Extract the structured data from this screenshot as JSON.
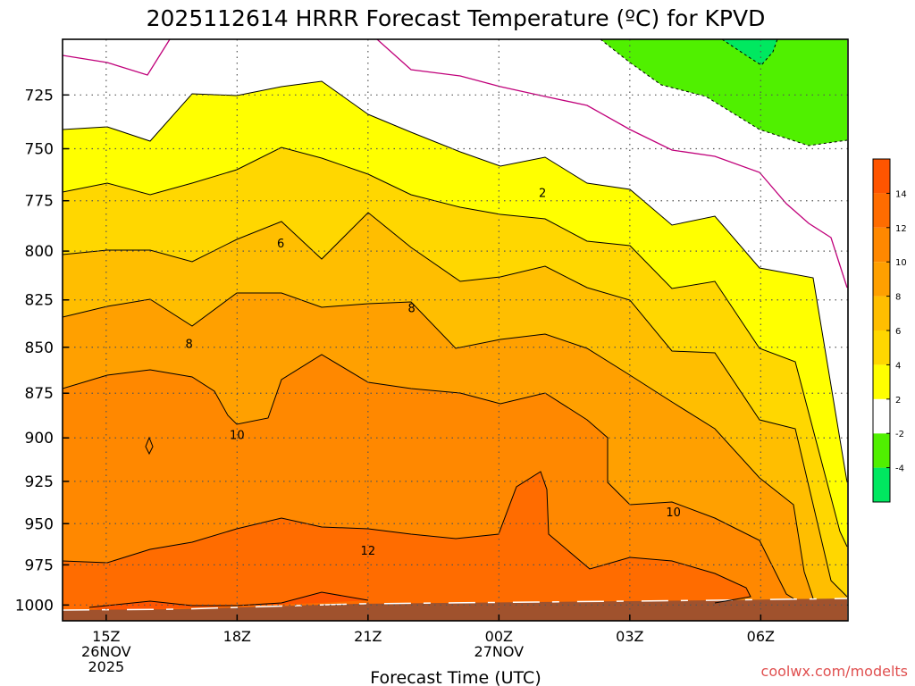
{
  "chart_data": {
    "type": "contour",
    "title": "2025112614 HRRR Forecast Temperature (ºC) for KPVD",
    "xlabel": "Forecast Time (UTC)",
    "ylabel": "",
    "credit": "coolwx.com/modelts",
    "x_ticks": [
      {
        "hour": 15,
        "lines": [
          "15Z",
          "26NOV",
          "2025"
        ]
      },
      {
        "hour": 18,
        "lines": [
          "18Z"
        ]
      },
      {
        "hour": 21,
        "lines": [
          "21Z"
        ]
      },
      {
        "hour": 24,
        "lines": [
          "00Z",
          "27NOV"
        ]
      },
      {
        "hour": 27,
        "lines": [
          "03Z"
        ]
      },
      {
        "hour": 30,
        "lines": [
          "06Z"
        ]
      }
    ],
    "xlim": [
      14,
      32
    ],
    "y_ticks": [
      725,
      750,
      775,
      800,
      825,
      850,
      875,
      900,
      925,
      950,
      975,
      1000
    ],
    "ylim_pressure_hPa": [
      1010,
      700
    ],
    "colorbar": {
      "levels": [
        -6,
        -4,
        -2,
        2,
        4,
        6,
        8,
        10,
        12,
        14,
        16
      ],
      "tick_labels": [
        "-4",
        "-2",
        "2",
        "4",
        "6",
        "8",
        "10",
        "12",
        "14"
      ],
      "colors": [
        "#00e860",
        "#50f000",
        "#ffffff",
        "#ffff00",
        "#ffd700",
        "#ffbe00",
        "#ffa000",
        "#ff8800",
        "#ff6c00",
        "#ff5500"
      ]
    },
    "contour_labels": [
      {
        "value": "2",
        "hour": 25.0,
        "pressure": 771
      },
      {
        "value": "6",
        "hour": 19.0,
        "pressure": 796
      },
      {
        "value": "8",
        "hour": 22.0,
        "pressure": 829
      },
      {
        "value": "8",
        "hour": 16.9,
        "pressure": 848
      },
      {
        "value": "10",
        "hour": 18.0,
        "pressure": 898
      },
      {
        "value": "10",
        "hour": 28.0,
        "pressure": 943
      },
      {
        "value": "12",
        "hour": 21.0,
        "pressure": 966
      }
    ]
  }
}
